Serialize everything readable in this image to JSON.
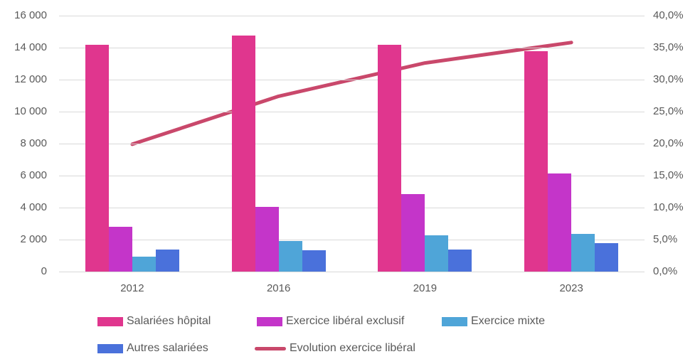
{
  "chart_data": {
    "type": "bar",
    "categories": [
      "2012",
      "2016",
      "2019",
      "2023"
    ],
    "series": [
      {
        "name": "Salariées hôpital",
        "color": "#E0368E",
        "values": [
          14200,
          14750,
          14200,
          13800
        ]
      },
      {
        "name": "Exercice libéral exclusif",
        "color": "#C435C9",
        "values": [
          2800,
          4050,
          4850,
          6150
        ]
      },
      {
        "name": "Exercice mixte",
        "color": "#4FA5D8",
        "values": [
          950,
          1900,
          2250,
          2350
        ]
      },
      {
        "name": "Autres salariées",
        "color": "#4A71DB",
        "values": [
          1400,
          1350,
          1400,
          1800
        ]
      }
    ],
    "line_series": {
      "name": "Evolution exercice libéral",
      "color": "#C9486B",
      "values_percent": [
        19.9,
        27.4,
        32.6,
        35.8
      ]
    },
    "y_left": {
      "min": 0,
      "max": 16000,
      "ticks": [
        "16 000",
        "14 000",
        "12 000",
        "10 000",
        "8 000",
        "6 000",
        "4 000",
        "2 000",
        "0"
      ]
    },
    "y_right": {
      "min": 0,
      "max": 40,
      "ticks": [
        "40,0%",
        "35,0%",
        "30,0%",
        "25,0%",
        "20,0%",
        "15,0%",
        "10,0%",
        "5,0%",
        "0,0%"
      ]
    },
    "grid": true,
    "legend_position": "bottom"
  }
}
